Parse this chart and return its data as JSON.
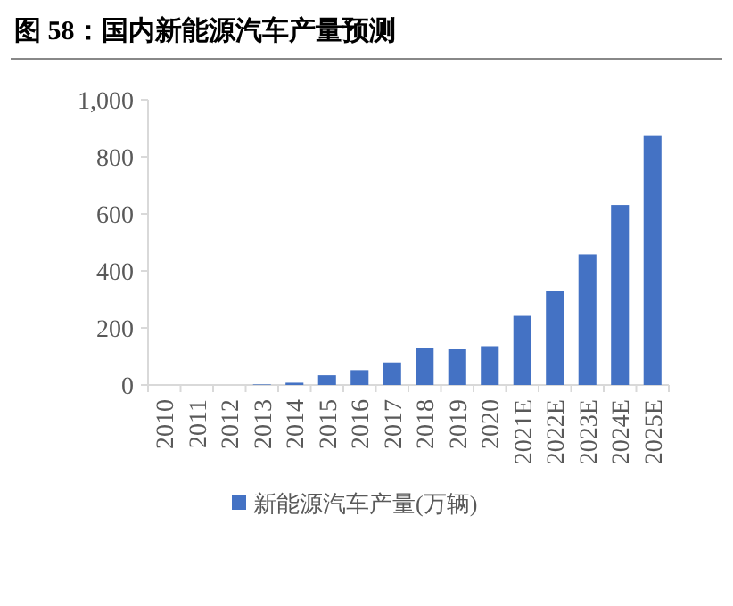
{
  "chart_data": {
    "type": "bar",
    "title": "图 58：国内新能源汽车产量预测",
    "categories": [
      "2010",
      "2011",
      "2012",
      "2013",
      "2014",
      "2015",
      "2016",
      "2017",
      "2018",
      "2019",
      "2020",
      "2021E",
      "2022E",
      "2023E",
      "2024E",
      "2025E"
    ],
    "series": [
      {
        "name": "新能源汽车产量(万辆)",
        "color": "#4472c4",
        "values": [
          null,
          null,
          null,
          2,
          8,
          34,
          52,
          79,
          129,
          125,
          136,
          242,
          331,
          458,
          631,
          873
        ]
      }
    ],
    "ylim": [
      0,
      1000
    ],
    "yticks": [
      0,
      200,
      400,
      600,
      800,
      {
        "value": 1000,
        "label": "1,000"
      }
    ],
    "legend": "bottom",
    "grid": false
  }
}
